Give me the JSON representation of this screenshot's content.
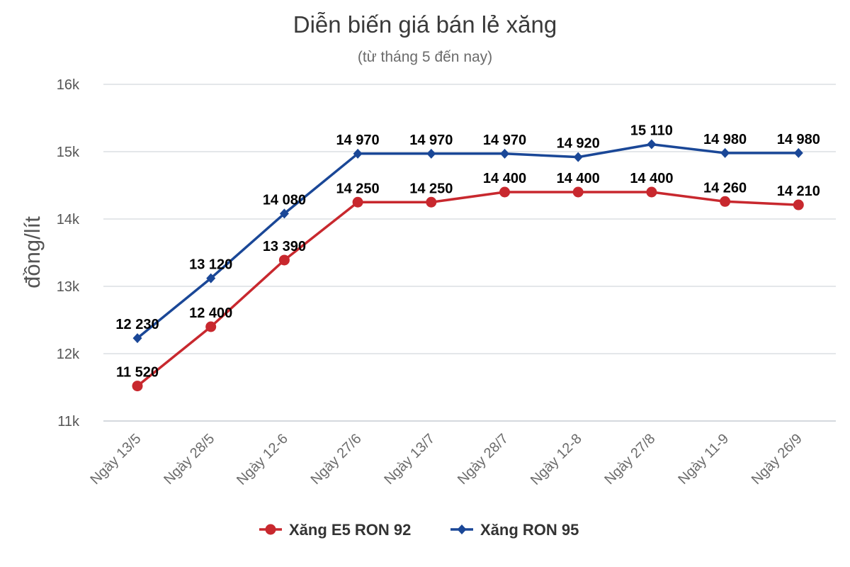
{
  "chart_data": {
    "type": "line",
    "title": "Diễn biến giá bán lẻ xăng",
    "subtitle": "(từ tháng 5 đến nay)",
    "ylabel": "đồng/lít",
    "xlabel": "",
    "ylim": [
      11000,
      16000
    ],
    "yticks": [
      {
        "value": 11000,
        "label": "11k"
      },
      {
        "value": 12000,
        "label": "12k"
      },
      {
        "value": 13000,
        "label": "13k"
      },
      {
        "value": 14000,
        "label": "14k"
      },
      {
        "value": 15000,
        "label": "15k"
      },
      {
        "value": 16000,
        "label": "16k"
      }
    ],
    "categories": [
      "Ngày 13/5",
      "Ngày 28/5",
      "Ngày 12-6",
      "Ngày 27/6",
      "Ngày 13/7",
      "Ngày 28/7",
      "Ngày 12-8",
      "Ngày 27/8",
      "Ngày 11-9",
      "Ngày 26/9"
    ],
    "grid": true,
    "legend_position": "bottom",
    "series": [
      {
        "name": "Xăng E5 RON 92",
        "color": "#c8282e",
        "marker": "circle",
        "values": [
          11520,
          12400,
          13390,
          14250,
          14250,
          14400,
          14400,
          14400,
          14260,
          14210
        ],
        "labels": [
          "11 520",
          "12 400",
          "13 390",
          "14 250",
          "14 250",
          "14 400",
          "14 400",
          "14 400",
          "14 260",
          "14 210"
        ]
      },
      {
        "name": "Xăng RON 95",
        "color": "#1a4797",
        "marker": "diamond",
        "values": [
          12230,
          13120,
          14080,
          14970,
          14970,
          14970,
          14920,
          15110,
          14980,
          14980
        ],
        "labels": [
          "12 230",
          "13 120",
          "14 080",
          "14 970",
          "14 970",
          "14 970",
          "14 920",
          "15 110",
          "14 980",
          "14 980"
        ]
      }
    ]
  }
}
